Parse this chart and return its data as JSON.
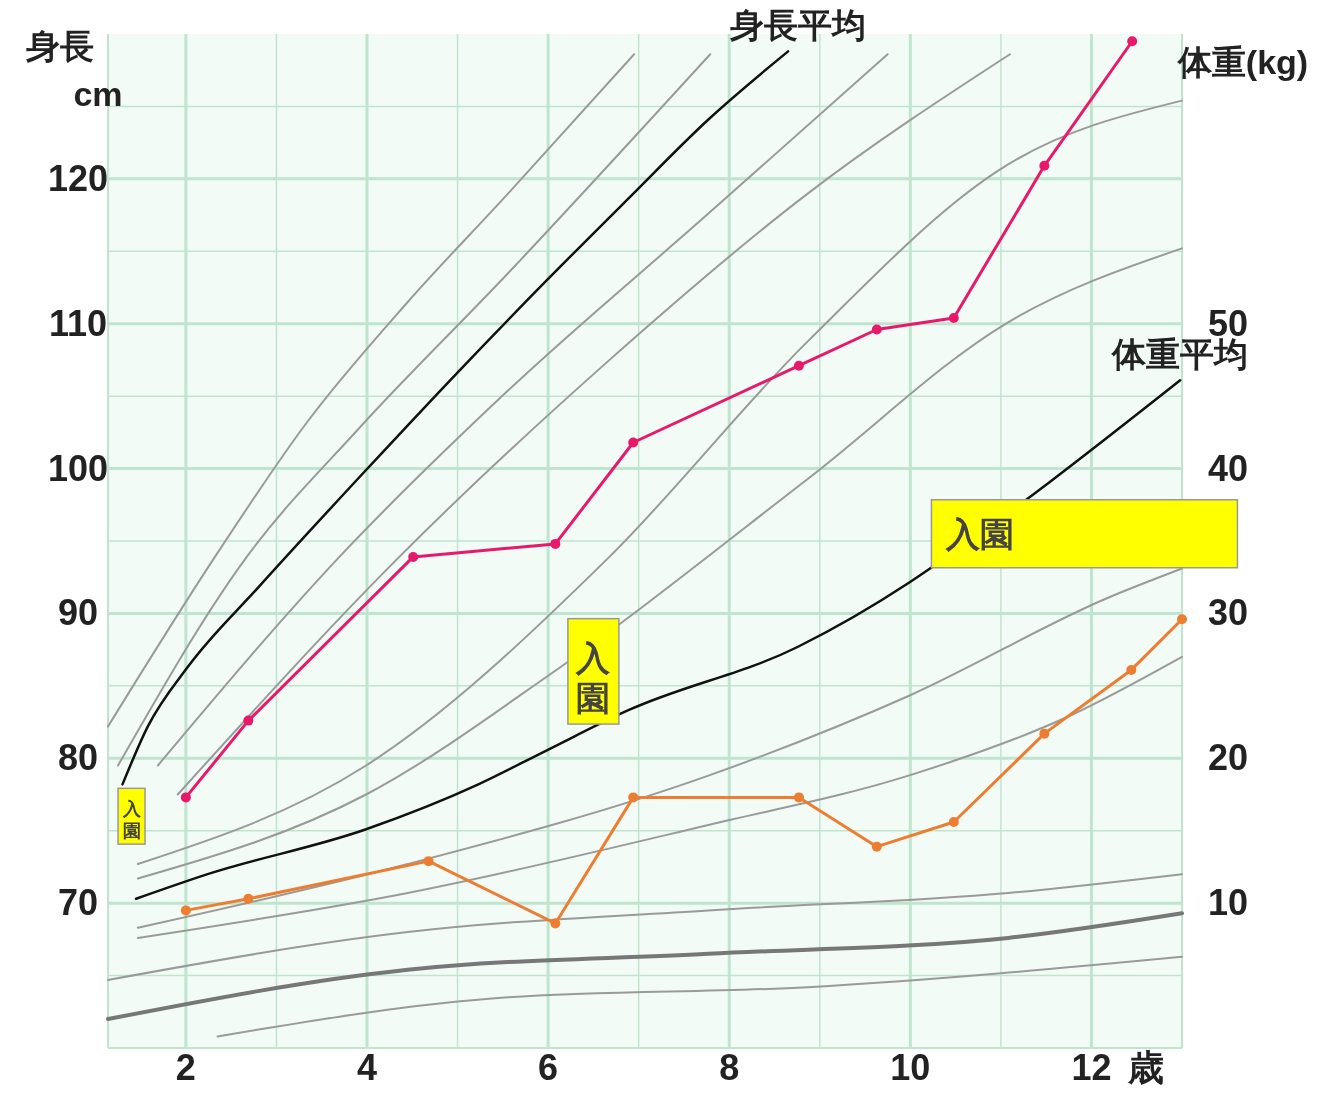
{
  "chart_data": {
    "type": "line",
    "xlabel": "歳",
    "ylabel": "身長\ncm",
    "y2label": "体重(kg)",
    "xlim": [
      1.14,
      13
    ],
    "xticks": [
      2,
      {
        "value": 3,
        "label": null
      },
      4,
      {
        "value": 5,
        "label": null
      },
      6,
      {
        "value": 7,
        "label": null
      },
      8,
      {
        "value": 9,
        "label": null
      },
      10,
      {
        "value": 11,
        "label": null
      },
      12
    ],
    "ylim": [
      60,
      130
    ],
    "yticks": [
      {
        "value": 65,
        "label": null
      },
      70,
      {
        "value": 75,
        "label": null
      },
      80,
      {
        "value": 85,
        "label": null
      },
      90,
      {
        "value": 95,
        "label": null
      },
      100,
      {
        "value": 105,
        "label": null
      },
      110,
      {
        "value": 115,
        "label": null
      },
      120,
      {
        "value": 125,
        "label": null
      }
    ],
    "y2lim": [
      0,
      70
    ],
    "y2ticks": [
      10,
      20,
      30,
      40,
      50
    ],
    "grid": true,
    "line_style": "solid",
    "marker": "none",
    "series": [
      {
        "color": "#9a9a9a",
        "x": [
          1.14,
          2.31,
          3.35,
          4.45,
          5.56,
          6.95
        ],
        "values": [
          82.2,
          93.8,
          103.3,
          111.5,
          119.0,
          128.6
        ]
      },
      {
        "color": "#9a9a9a",
        "x": [
          1.25,
          2.66,
          3.9,
          5.56,
          7.79
        ],
        "values": [
          79.5,
          93.8,
          102.7,
          113.5,
          128.6
        ]
      },
      {
        "color": "#9a9a9a",
        "x": [
          1.69,
          3.68,
          5.56,
          7.77,
          9.75
        ],
        "values": [
          79.5,
          93.8,
          105.4,
          117.6,
          128.6
        ]
      },
      {
        "color": "#9a9a9a",
        "x": [
          1.91,
          4.34,
          6.66,
          8.87,
          11.1
        ],
        "values": [
          77.5,
          93.8,
          107.4,
          119.0,
          128.6
        ]
      },
      {
        "color": "#9a9a9a",
        "axis": "y2",
        "x": [
          1.47,
          3.99,
          6.66,
          8.87,
          11.08,
          13.0
        ],
        "values": [
          12.7,
          19.5,
          33.8,
          48.8,
          61.0,
          65.4
        ]
      },
      {
        "color": "#9a9a9a",
        "axis": "y2",
        "x": [
          1.47,
          3.99,
          6.0,
          8.87,
          11.08,
          13.0
        ],
        "values": [
          11.7,
          17.5,
          25.7,
          39.3,
          50.1,
          55.2
        ]
      },
      {
        "color": "#9a9a9a",
        "axis": "y2",
        "x": [
          1.47,
          4.45,
          7.77,
          9.98,
          12.19,
          13.0
        ],
        "values": [
          8.3,
          12.7,
          18.8,
          24.3,
          31.1,
          33.1
        ]
      },
      {
        "color": "#9a9a9a",
        "axis": "y2",
        "x": [
          1.47,
          4.45,
          7.77,
          9.98,
          11.75,
          13.0
        ],
        "values": [
          7.6,
          10.7,
          15.4,
          18.8,
          22.9,
          27.0
        ]
      },
      {
        "color": "#9a9a9a",
        "axis": "y2",
        "x": [
          1.14,
          4.45,
          7.77,
          11.08,
          13.0
        ],
        "values": [
          4.7,
          8.0,
          9.5,
          10.7,
          12.0
        ]
      },
      {
        "color": "#777777",
        "axis": "y2",
        "x": [
          1.14,
          4.45,
          7.77,
          11.08,
          13.0
        ],
        "values": [
          2.0,
          5.4,
          6.5,
          7.6,
          9.3
        ]
      },
      {
        "color": "#9a9a9a",
        "axis": "y2",
        "x": [
          2.35,
          5.56,
          8.87,
          13.0
        ],
        "values": [
          0.8,
          3.5,
          4.2,
          6.3
        ]
      },
      {
        "name": "身長平均",
        "color": "#111111",
        "x": [
          1.3,
          1.58,
          2.02,
          2.8,
          3.99,
          5.01,
          5.97,
          6.88,
          7.77,
          8.65
        ],
        "values": [
          78.2,
          82.2,
          86.3,
          91.8,
          99.9,
          106.7,
          112.9,
          118.6,
          124.1,
          128.8
        ]
      },
      {
        "name": "体重平均",
        "color": "#111111",
        "axis": "y2",
        "x": [
          1.45,
          2.24,
          3.99,
          5.23,
          5.97,
          6.88,
          8.76,
          9.98,
          10.1,
          12.98
        ],
        "values": [
          10.3,
          12.0,
          15.1,
          18.2,
          20.5,
          23.3,
          27.7,
          32.1,
          32.6,
          46.1
        ]
      },
      {
        "color": "#e8196b",
        "marker": "circle",
        "x": [
          2.0,
          2.69,
          4.51,
          6.08,
          6.94,
          8.77,
          9.63,
          10.48,
          11.48,
          12.45
        ],
        "values": [
          77.3,
          82.6,
          93.9,
          94.8,
          101.8,
          107.1,
          109.6,
          110.4,
          120.9,
          129.5
        ]
      },
      {
        "color": "#ed7d31",
        "marker": "circle",
        "axis": "y2",
        "x": [
          2.0,
          2.69,
          4.68,
          6.08,
          6.94,
          8.77,
          9.63,
          10.48,
          11.48,
          12.44,
          13.0
        ],
        "values": [
          9.5,
          10.3,
          12.9,
          8.6,
          17.3,
          17.3,
          13.9,
          15.6,
          21.7,
          26.1,
          29.6
        ]
      }
    ],
    "annotations": [
      "入園",
      "入園",
      "入園"
    ]
  }
}
